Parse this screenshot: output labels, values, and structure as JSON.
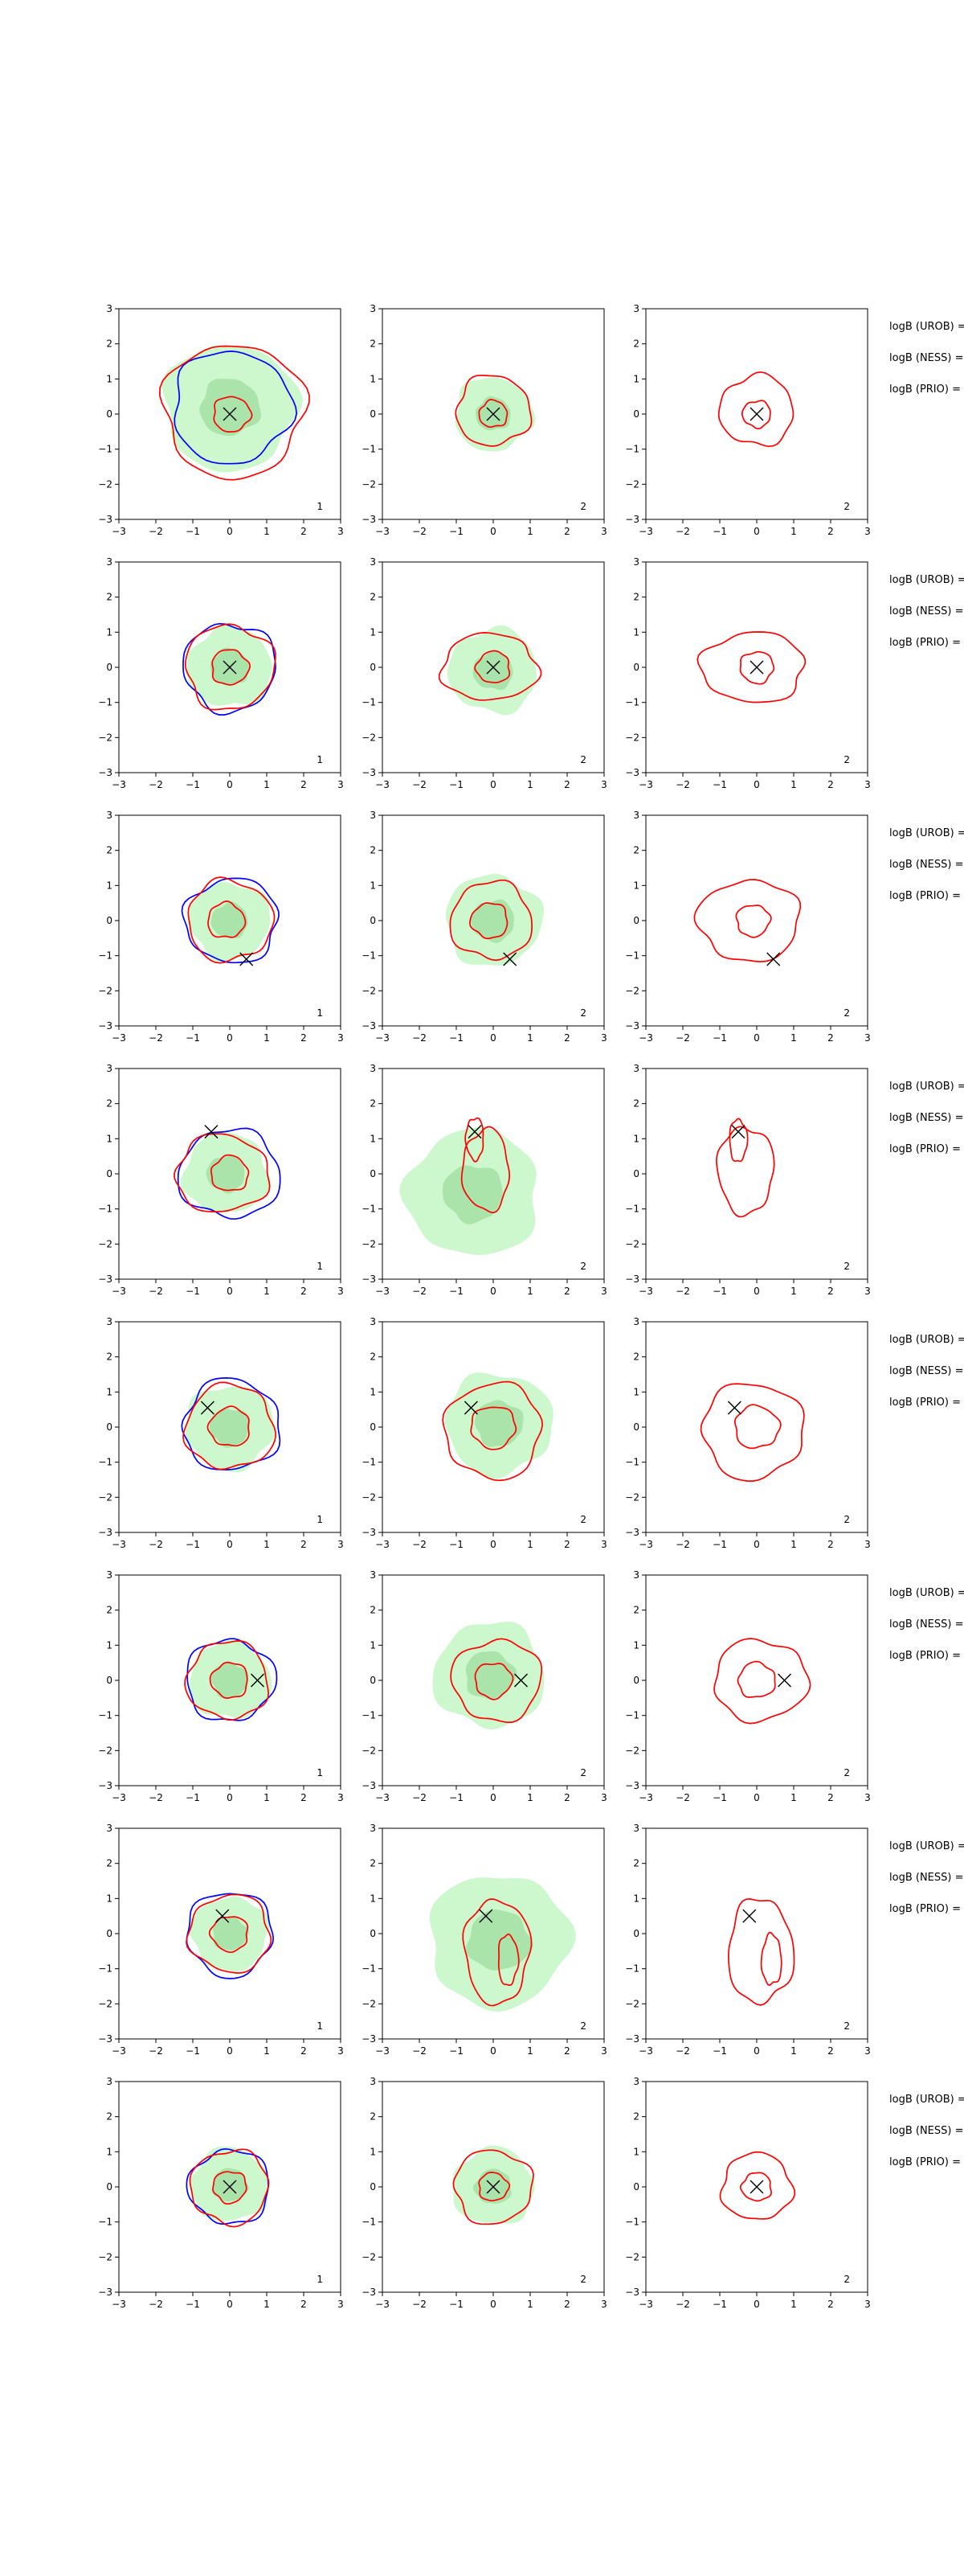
{
  "chart_data": {
    "type": "contour",
    "layout": "8 rows x 3 panels, contour panels with marked points and side text labels",
    "xlim": [
      -3,
      3
    ],
    "ylim": [
      -3,
      3
    ],
    "ticks": [
      -3,
      -2,
      -1,
      0,
      1,
      2,
      3
    ],
    "grid": false,
    "colors": {
      "fill": "#90ee90",
      "contour_red": "#ff0000",
      "contour_blue": "#0000ff",
      "marker": "#000000"
    },
    "labels": [
      "logB (UROB) =",
      "logB (NESS) =",
      "logB (PRIO) ="
    ],
    "rows": [
      {
        "panel_numbers": [
          "1",
          "2",
          "2"
        ],
        "marker": [
          0.0,
          0.0
        ],
        "p1": {
          "fill": {
            "cx": 0.0,
            "cy": 0.2,
            "r": 1.8
          },
          "red": [
            {
              "cx": 0.1,
              "cy": 0.1,
              "r": 1.0,
              "sx": 1.9,
              "sy": 1.9
            },
            {
              "cx": 0.05,
              "cy": 0.0,
              "r": 0.5,
              "sx": 1.0,
              "sy": 1.0
            }
          ],
          "blue": [
            {
              "cx": 0.05,
              "cy": 0.2,
              "r": 1.6,
              "sx": 1.0,
              "sy": 1.0
            }
          ]
        },
        "p2": {
          "fill": {
            "cx": 0.0,
            "cy": 0.0,
            "r": 1.05
          },
          "red": [
            {
              "cx": 0.0,
              "cy": 0.1,
              "r": 1.0,
              "sx": 1.0,
              "sy": 1.0
            },
            {
              "cx": 0.0,
              "cy": 0.0,
              "r": 0.38,
              "sx": 1.0,
              "sy": 1.0
            }
          ]
        },
        "p3": {
          "red": [
            {
              "cx": 0.0,
              "cy": 0.1,
              "r": 1.0,
              "sx": 1.0,
              "sy": 1.0
            },
            {
              "cx": 0.0,
              "cy": 0.0,
              "r": 0.38,
              "sx": 1.0,
              "sy": 1.0
            }
          ]
        }
      },
      {
        "panel_numbers": [
          "1",
          "2",
          "2"
        ],
        "marker": [
          0.0,
          0.0
        ],
        "p1": {
          "fill": {
            "cx": 0.0,
            "cy": 0.0,
            "r": 1.15
          },
          "red": [
            {
              "cx": 0.0,
              "cy": 0.0,
              "r": 1.2,
              "sx": 1.0,
              "sy": 1.0
            },
            {
              "cx": 0.0,
              "cy": 0.0,
              "r": 0.5,
              "sx": 1.0,
              "sy": 1.0
            }
          ],
          "blue": [
            {
              "cx": 0.0,
              "cy": 0.0,
              "r": 1.25,
              "sx": 1.0,
              "sy": 1.0
            }
          ]
        },
        "p2": {
          "fill": {
            "cx": 0.0,
            "cy": -0.1,
            "r": 1.2
          },
          "red": [
            {
              "cx": -0.1,
              "cy": 0.0,
              "r": 1.0,
              "sx": 1.3,
              "sy": 0.95
            },
            {
              "cx": 0.0,
              "cy": 0.0,
              "r": 0.45,
              "sx": 1.0,
              "sy": 1.0
            }
          ]
        },
        "p3": {
          "red": [
            {
              "cx": -0.1,
              "cy": 0.0,
              "r": 1.0,
              "sx": 1.4,
              "sy": 1.0
            },
            {
              "cx": 0.0,
              "cy": 0.0,
              "r": 0.45,
              "sx": 1.0,
              "sy": 1.0
            }
          ]
        }
      },
      {
        "panel_numbers": [
          "1",
          "2",
          "2"
        ],
        "marker": [
          0.45,
          -1.1
        ],
        "p1": {
          "fill": {
            "cx": 0.0,
            "cy": 0.0,
            "r": 1.1
          },
          "red": [
            {
              "cx": 0.0,
              "cy": 0.0,
              "r": 1.15,
              "sx": 1.0,
              "sy": 1.0
            },
            {
              "cx": -0.1,
              "cy": 0.0,
              "r": 0.5,
              "sx": 1.0,
              "sy": 1.0
            }
          ],
          "blue": [
            {
              "cx": 0.05,
              "cy": 0.0,
              "r": 1.2,
              "sx": 1.05,
              "sy": 1.0
            }
          ]
        },
        "p2": {
          "fill": {
            "cx": 0.0,
            "cy": 0.0,
            "r": 1.3
          },
          "red": [
            {
              "cx": -0.05,
              "cy": 0.0,
              "r": 1.1,
              "sx": 1.0,
              "sy": 1.0
            },
            {
              "cx": -0.1,
              "cy": 0.0,
              "r": 0.5,
              "sx": 1.0,
              "sy": 1.0
            }
          ]
        },
        "p3": {
          "red": [
            {
              "cx": -0.2,
              "cy": 0.0,
              "r": 1.15,
              "sx": 1.2,
              "sy": 1.0
            },
            {
              "cx": -0.1,
              "cy": 0.0,
              "r": 0.45,
              "sx": 1.0,
              "sy": 1.0
            }
          ]
        }
      },
      {
        "panel_numbers": [
          "1",
          "2",
          "2"
        ],
        "marker": [
          -0.5,
          1.2
        ],
        "p1": {
          "fill": {
            "cx": -0.1,
            "cy": 0.0,
            "r": 1.15
          },
          "red": [
            {
              "cx": -0.2,
              "cy": 0.0,
              "r": 1.05,
              "sx": 1.2,
              "sy": 1.05
            },
            {
              "cx": 0.0,
              "cy": 0.0,
              "r": 0.5,
              "sx": 1.0,
              "sy": 1.0
            }
          ],
          "blue": [
            {
              "cx": 0.0,
              "cy": 0.0,
              "r": 1.25,
              "sx": 1.1,
              "sy": 1.0
            }
          ]
        },
        "p2": {
          "fill": {
            "cx": -0.55,
            "cy": -0.55,
            "r": 1.8
          },
          "red": [
            {
              "cx": -0.2,
              "cy": 0.1,
              "r": 0.9,
              "sx": 0.7,
              "sy": 1.3
            },
            {
              "cx": -0.5,
              "cy": 1.0,
              "r": 0.4,
              "sx": 0.6,
              "sy": 1.5
            }
          ]
        },
        "p3": {
          "red": [
            {
              "cx": -0.3,
              "cy": 0.1,
              "r": 0.95,
              "sx": 0.8,
              "sy": 1.3
            },
            {
              "cx": -0.5,
              "cy": 0.95,
              "r": 0.4,
              "sx": 0.6,
              "sy": 1.5
            }
          ]
        }
      },
      {
        "panel_numbers": [
          "1",
          "2",
          "2"
        ],
        "marker": [
          -0.6,
          0.55
        ],
        "p1": {
          "fill": {
            "cx": 0.0,
            "cy": 0.0,
            "r": 1.2
          },
          "red": [
            {
              "cx": 0.0,
              "cy": 0.0,
              "r": 1.2,
              "sx": 1.0,
              "sy": 1.0
            },
            {
              "cx": 0.0,
              "cy": 0.0,
              "r": 0.55,
              "sx": 1.0,
              "sy": 1.0
            }
          ],
          "blue": [
            {
              "cx": 0.05,
              "cy": 0.05,
              "r": 1.3,
              "sx": 1.0,
              "sy": 1.0
            }
          ]
        },
        "p2": {
          "fill": {
            "cx": 0.15,
            "cy": 0.1,
            "r": 1.45
          },
          "red": [
            {
              "cx": 0.0,
              "cy": -0.1,
              "r": 1.3,
              "sx": 1.0,
              "sy": 1.05
            },
            {
              "cx": 0.0,
              "cy": 0.0,
              "r": 0.6,
              "sx": 1.0,
              "sy": 1.0
            }
          ]
        },
        "p3": {
          "red": [
            {
              "cx": -0.1,
              "cy": -0.1,
              "r": 1.3,
              "sx": 1.05,
              "sy": 1.05
            },
            {
              "cx": 0.0,
              "cy": 0.0,
              "r": 0.6,
              "sx": 1.0,
              "sy": 1.0
            }
          ]
        }
      },
      {
        "panel_numbers": [
          "1",
          "2",
          "2"
        ],
        "marker": [
          0.75,
          0.0
        ],
        "p1": {
          "fill": {
            "cx": 0.0,
            "cy": 0.0,
            "r": 1.1
          },
          "red": [
            {
              "cx": -0.05,
              "cy": 0.0,
              "r": 1.1,
              "sx": 1.0,
              "sy": 1.0
            },
            {
              "cx": 0.0,
              "cy": 0.0,
              "r": 0.5,
              "sx": 1.0,
              "sy": 1.0
            }
          ],
          "blue": [
            {
              "cx": 0.0,
              "cy": 0.0,
              "r": 1.15,
              "sx": 1.05,
              "sy": 1.0
            }
          ]
        },
        "p2": {
          "fill": {
            "cx": -0.1,
            "cy": 0.15,
            "r": 1.5
          },
          "red": [
            {
              "cx": 0.1,
              "cy": 0.0,
              "r": 1.15,
              "sx": 1.05,
              "sy": 1.0
            },
            {
              "cx": 0.0,
              "cy": 0.0,
              "r": 0.5,
              "sx": 1.0,
              "sy": 1.0
            }
          ]
        },
        "p3": {
          "red": [
            {
              "cx": 0.1,
              "cy": 0.0,
              "r": 1.15,
              "sx": 1.1,
              "sy": 1.0
            },
            {
              "cx": 0.0,
              "cy": 0.0,
              "r": 0.5,
              "sx": 1.0,
              "sy": 1.0
            }
          ]
        }
      },
      {
        "panel_numbers": [
          "1",
          "2",
          "2"
        ],
        "marker": [
          -0.2,
          0.5
        ],
        "p1": {
          "fill": {
            "cx": 0.0,
            "cy": 0.0,
            "r": 1.05
          },
          "red": [
            {
              "cx": 0.0,
              "cy": 0.0,
              "r": 1.1,
              "sx": 1.0,
              "sy": 1.0
            },
            {
              "cx": 0.0,
              "cy": 0.0,
              "r": 0.5,
              "sx": 1.0,
              "sy": 1.0
            }
          ],
          "blue": [
            {
              "cx": 0.0,
              "cy": 0.0,
              "r": 1.15,
              "sx": 1.0,
              "sy": 1.05
            }
          ]
        },
        "p2": {
          "fill": {
            "cx": 0.15,
            "cy": -0.2,
            "r": 1.9
          },
          "red": [
            {
              "cx": 0.1,
              "cy": -0.5,
              "r": 1.1,
              "sx": 0.8,
              "sy": 1.35
            },
            {
              "cx": 0.4,
              "cy": -0.75,
              "r": 0.45,
              "sx": 0.6,
              "sy": 1.6
            }
          ]
        },
        "p3": {
          "red": [
            {
              "cx": 0.1,
              "cy": -0.5,
              "r": 1.1,
              "sx": 0.8,
              "sy": 1.35
            },
            {
              "cx": 0.4,
              "cy": -0.75,
              "r": 0.45,
              "sx": 0.6,
              "sy": 1.6
            }
          ]
        }
      },
      {
        "panel_numbers": [
          "1",
          "2",
          "2"
        ],
        "marker": [
          0.0,
          0.0
        ],
        "p1": {
          "fill": {
            "cx": 0.0,
            "cy": 0.05,
            "r": 1.05
          },
          "red": [
            {
              "cx": 0.0,
              "cy": 0.0,
              "r": 1.05,
              "sx": 1.0,
              "sy": 1.0
            },
            {
              "cx": 0.0,
              "cy": 0.0,
              "r": 0.45,
              "sx": 1.0,
              "sy": 1.0
            }
          ],
          "blue": [
            {
              "cx": 0.0,
              "cy": 0.0,
              "r": 1.05,
              "sx": 1.05,
              "sy": 1.0
            }
          ]
        },
        "p2": {
          "fill": {
            "cx": 0.0,
            "cy": 0.0,
            "r": 1.1
          },
          "red": [
            {
              "cx": 0.0,
              "cy": 0.0,
              "r": 1.05,
              "sx": 1.0,
              "sy": 1.0
            },
            {
              "cx": 0.0,
              "cy": 0.0,
              "r": 0.4,
              "sx": 1.0,
              "sy": 1.0
            }
          ]
        },
        "p3": {
          "red": [
            {
              "cx": 0.0,
              "cy": 0.0,
              "r": 0.95,
              "sx": 1.0,
              "sy": 1.0
            },
            {
              "cx": 0.0,
              "cy": 0.0,
              "r": 0.4,
              "sx": 1.0,
              "sy": 1.0
            }
          ]
        }
      }
    ]
  }
}
